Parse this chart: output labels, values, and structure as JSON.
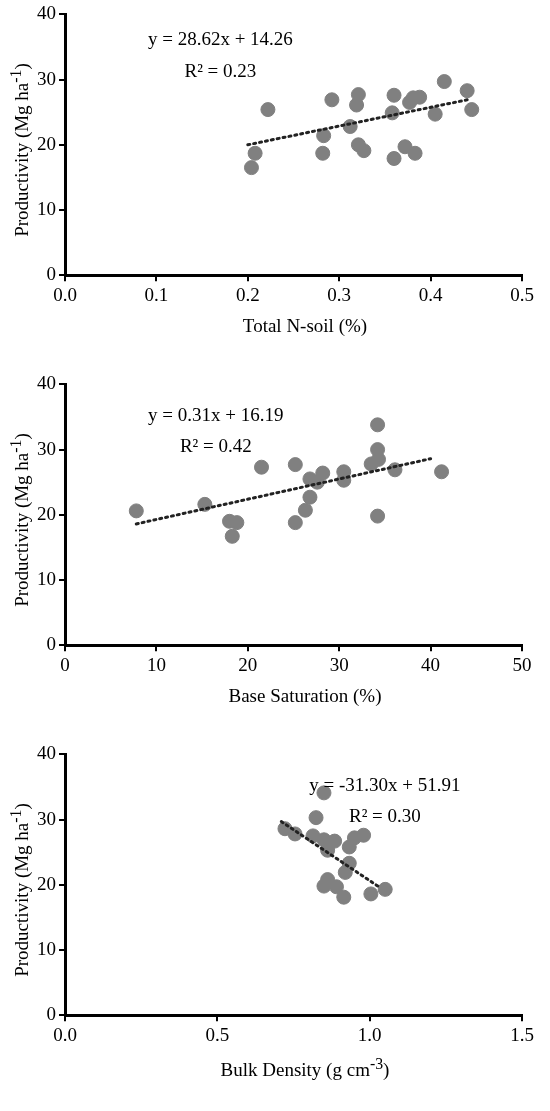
{
  "chart_data": [
    {
      "type": "scatter",
      "xlabel": "Total N-soil (%)",
      "ylabel": "Productivity (Mg ha$^{-1}$)",
      "xlim": [
        0,
        0.5
      ],
      "xticks": [
        {
          "value": 0,
          "label": "0.0"
        },
        {
          "value": 0.1,
          "label": "0.1"
        },
        {
          "value": 0.2,
          "label": "0.2"
        },
        {
          "value": 0.3,
          "label": "0.3"
        },
        {
          "value": 0.4,
          "label": "0.4"
        },
        {
          "value": 0.5,
          "label": "0.5"
        }
      ],
      "ylim": [
        0,
        40
      ],
      "yticks": [
        0,
        10,
        20,
        30,
        40
      ],
      "grid": false,
      "legend": false,
      "marker": "circle",
      "annotations": [
        "y = 28.62x + 14.26",
        "R² = 0.23"
      ],
      "series": [
        {
          "color": "#808080",
          "x": [
            0.204,
            0.208,
            0.222,
            0.282,
            0.283,
            0.292,
            0.312,
            0.321,
            0.319,
            0.321,
            0.327,
            0.36,
            0.358,
            0.36,
            0.372,
            0.383,
            0.377,
            0.381,
            0.388,
            0.405,
            0.415,
            0.44,
            0.445
          ],
          "values": [
            16.5,
            18.7,
            25.4,
            18.7,
            21.4,
            26.9,
            22.8,
            27.7,
            26.1,
            20.0,
            19.1,
            27.6,
            24.9,
            17.9,
            19.7,
            18.7,
            26.5,
            27.2,
            27.3,
            24.7,
            29.7,
            28.3,
            25.4
          ]
        },
        {
          "type": "line",
          "color": "#222222",
          "line_style": "dotted",
          "marker": "none",
          "x": [
            0.2,
            0.44
          ],
          "values": [
            20.0,
            26.9
          ]
        }
      ]
    },
    {
      "type": "scatter",
      "xlabel": "Base Saturation (%)",
      "ylabel": "Productivity (Mg ha$^{-1}$)",
      "xlim": [
        0,
        50
      ],
      "xticks": [
        0,
        10,
        20,
        30,
        40,
        50
      ],
      "ylim": [
        0,
        40
      ],
      "yticks": [
        0,
        10,
        20,
        30,
        40
      ],
      "grid": false,
      "legend": false,
      "marker": "circle",
      "annotations": [
        "y = 0.31x + 16.19",
        "R² = 0.42"
      ],
      "series": [
        {
          "color": "#808080",
          "x": [
            7.8,
            15.3,
            18.0,
            18.8,
            18.3,
            21.5,
            25.2,
            25.2,
            26.3,
            26.8,
            26.8,
            27.6,
            28.2,
            30.5,
            30.5,
            34.2,
            34.2,
            34.3,
            33.5,
            34.2,
            36.1,
            41.2
          ],
          "values": [
            20.6,
            21.6,
            19.0,
            18.8,
            16.7,
            27.3,
            27.7,
            18.8,
            20.7,
            22.7,
            25.5,
            25.0,
            26.4,
            26.6,
            25.3,
            33.8,
            30.0,
            28.5,
            27.8,
            19.8,
            26.9,
            26.6
          ]
        },
        {
          "type": "line",
          "color": "#222222",
          "line_style": "dotted",
          "marker": "none",
          "x": [
            7.8,
            40
          ],
          "values": [
            18.6,
            28.6
          ]
        }
      ]
    },
    {
      "type": "scatter",
      "xlabel": "Bulk Density (g cm$^{-3}$)",
      "ylabel": "Productivity (Mg ha$^{-1}$)",
      "xlim": [
        0,
        1.5
      ],
      "xticks": [
        {
          "value": 0,
          "label": "0.0"
        },
        {
          "value": 0.5,
          "label": "0.5"
        },
        {
          "value": 1,
          "label": "1.0"
        },
        {
          "value": 1.5,
          "label": "1.5"
        }
      ],
      "ylim": [
        0,
        40
      ],
      "yticks": [
        0,
        10,
        20,
        30,
        40
      ],
      "grid": false,
      "legend": false,
      "marker": "circle",
      "annotations": [
        "y = -31.30x + 51.91",
        "R² = 0.30"
      ],
      "series": [
        {
          "color": "#808080",
          "x": [
            0.85,
            0.824,
            0.722,
            0.755,
            0.814,
            0.85,
            0.885,
            0.95,
            0.98,
            0.933,
            0.862,
            0.933,
            0.92,
            0.862,
            0.85,
            0.891,
            0.915,
            1.004,
            1.051
          ],
          "values": [
            34.1,
            30.3,
            28.6,
            27.8,
            27.5,
            26.9,
            26.7,
            27.2,
            27.6,
            25.8,
            25.3,
            23.3,
            21.9,
            20.8,
            19.8,
            19.7,
            18.1,
            18.6,
            19.3
          ]
        },
        {
          "type": "line",
          "color": "#222222",
          "line_style": "dotted",
          "marker": "none",
          "x": [
            0.71,
            1.03
          ],
          "values": [
            29.7,
            19.7
          ]
        }
      ]
    }
  ]
}
